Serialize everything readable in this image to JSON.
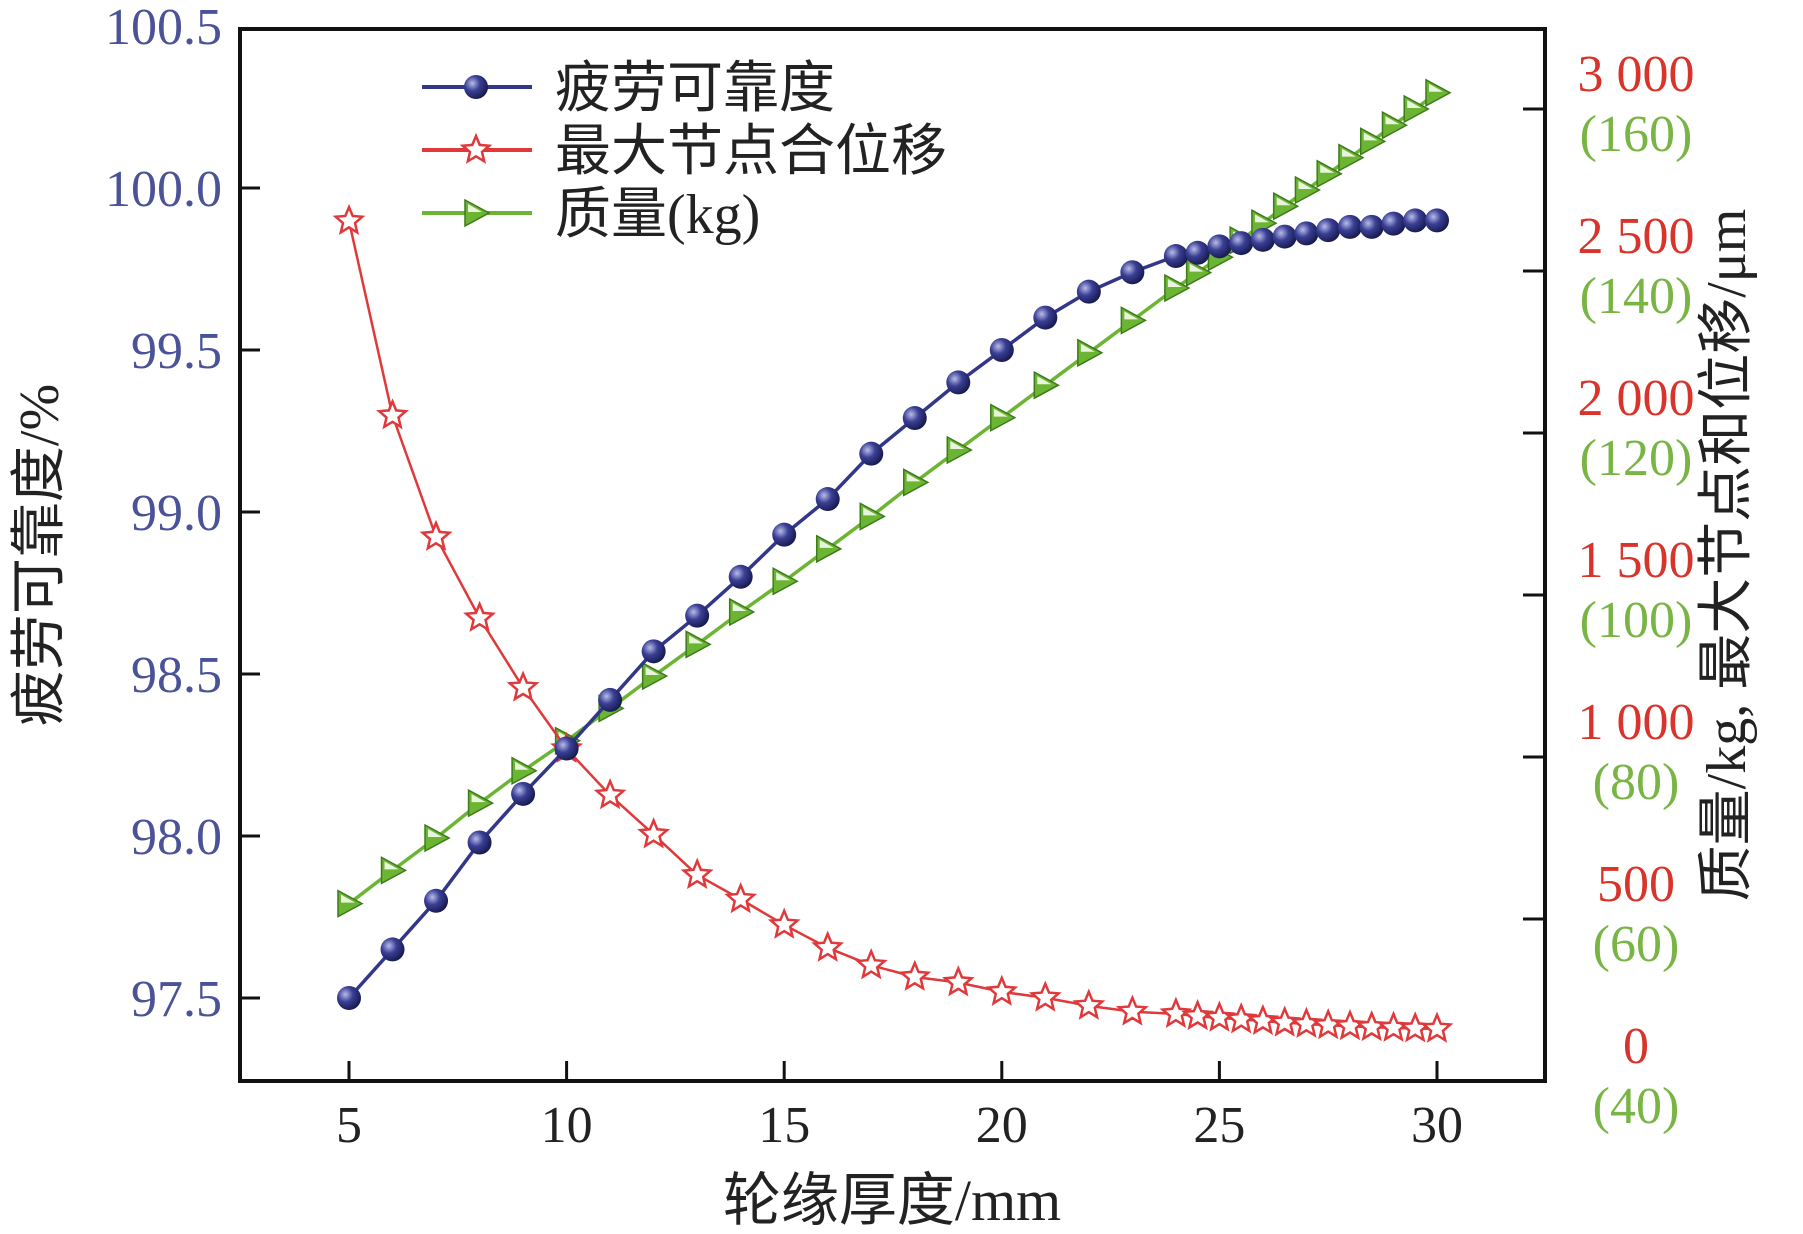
{
  "chart_data": {
    "type": "line",
    "xlabel": "轮缘厚度/mm",
    "ylabel_left": "疲劳可靠度/%",
    "ylabel_right": "质量/kg, 最大节点和位移/μm",
    "xlim": [
      2.5,
      32.5
    ],
    "xticks": [
      5,
      10,
      15,
      20,
      25,
      30
    ],
    "ylim_left": [
      97.26,
      100.5
    ],
    "yticks_left": [
      "97.5",
      "98.0",
      "98.5",
      "99.0",
      "99.5",
      "100.0",
      "100.5"
    ],
    "ylim_right": [
      0,
      3250
    ],
    "yticks_right": [
      {
        "value": 0,
        "label": "0",
        "mass_label": "(40)"
      },
      {
        "value": 500,
        "label": "500",
        "mass_label": "(60)"
      },
      {
        "value": 1000,
        "label": "1 000",
        "mass_label": "(80)"
      },
      {
        "value": 1500,
        "label": "1 500",
        "mass_label": "(100)"
      },
      {
        "value": 2000,
        "label": "2 000",
        "mass_label": "(120)"
      },
      {
        "value": 2500,
        "label": "2 500",
        "mass_label": "(140)"
      },
      {
        "value": 3000,
        "label": "3 000",
        "mass_label": "(160)"
      }
    ],
    "legend_position": "top-left",
    "series": [
      {
        "name": "疲劳可靠度",
        "axis": "left",
        "marker": "circle",
        "color": "#33378a",
        "x": [
          5,
          6,
          7,
          8,
          9,
          10,
          11,
          12,
          13,
          14,
          15,
          16,
          17,
          18,
          19,
          20,
          21,
          22,
          23,
          24,
          24.5,
          25,
          25.5,
          26,
          26.5,
          27,
          27.5,
          28,
          28.5,
          29,
          29.5,
          30
        ],
        "y": [
          97.5,
          97.65,
          97.8,
          97.98,
          98.13,
          98.27,
          98.42,
          98.57,
          98.68,
          98.8,
          98.93,
          99.04,
          99.18,
          99.29,
          99.4,
          99.5,
          99.6,
          99.68,
          99.74,
          99.79,
          99.8,
          99.82,
          99.83,
          99.84,
          99.85,
          99.86,
          99.87,
          99.88,
          99.88,
          99.89,
          99.9,
          99.9
        ]
      },
      {
        "name": "最大节点合位移",
        "axis": "right",
        "marker": "star",
        "color": "#e0393b",
        "x": [
          5,
          6,
          7,
          8,
          9,
          10,
          11,
          12,
          13,
          14,
          15,
          16,
          17,
          18,
          19,
          20,
          21,
          22,
          23,
          24,
          24.5,
          25,
          25.5,
          26,
          26.5,
          27,
          27.5,
          28,
          28.5,
          29,
          29.5,
          30
        ],
        "y": [
          2654,
          2054,
          1679,
          1429,
          1214,
          1025,
          882,
          761,
          636,
          561,
          482,
          411,
          357,
          321,
          304,
          275,
          257,
          232,
          214,
          207,
          200,
          195,
          190,
          185,
          180,
          176,
          172,
          169,
          166,
          164,
          162,
          161
        ]
      },
      {
        "name": "质量(kg)",
        "axis": "right_mass",
        "marker": "triangle-right",
        "color": "#6cb533",
        "x": [
          5,
          6,
          7,
          8,
          9,
          10,
          11,
          12,
          13,
          14,
          15,
          16,
          17,
          18,
          19,
          20,
          21,
          22,
          23,
          24,
          24.5,
          25,
          25.5,
          26,
          26.5,
          27,
          27.5,
          28,
          28.5,
          29,
          29.5,
          30
        ],
        "y": [
          61.9,
          66,
          70,
          74.3,
          78.3,
          82,
          86,
          90,
          93.9,
          97.9,
          101.7,
          105.7,
          109.7,
          113.9,
          117.9,
          121.9,
          125.9,
          129.9,
          133.9,
          137.9,
          139.8,
          141.7,
          143.8,
          145.9,
          148,
          150,
          152,
          154,
          156,
          158,
          160,
          162
        ]
      }
    ]
  },
  "colors": {
    "left_axis": "#4b5398",
    "right_axis": "#d9342b",
    "mass_axis": "#78b545"
  }
}
